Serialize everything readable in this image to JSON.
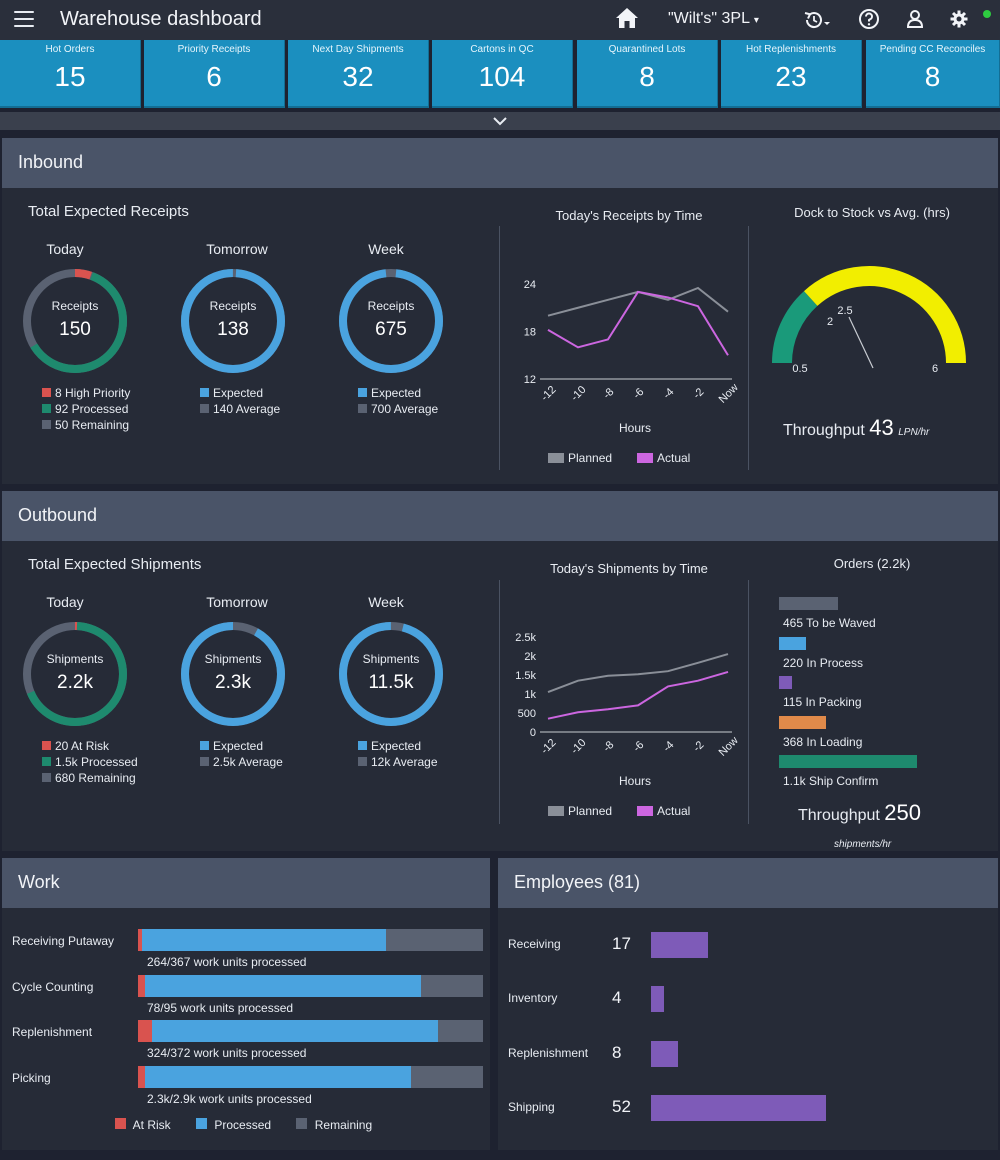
{
  "header": {
    "title": "Warehouse dashboard",
    "tenant": "\"Wilt's\" 3PL",
    "icons": [
      "menu-icon",
      "home-icon",
      "history-icon",
      "help-icon",
      "user-icon",
      "gear-icon"
    ],
    "status_color": "#2ecc40"
  },
  "kpis": [
    {
      "label": "Hot Orders",
      "value": "15"
    },
    {
      "label": "Priority Receipts",
      "value": "6"
    },
    {
      "label": "Next Day Shipments",
      "value": "32"
    },
    {
      "label": "Cartons in QC",
      "value": "104"
    },
    {
      "label": "Quarantined Lots",
      "value": "8"
    },
    {
      "label": "Hot Replenishments",
      "value": "23"
    },
    {
      "label": "Pending CC Reconciles",
      "value": "8"
    }
  ],
  "colors": {
    "kpi": "#1b8fbf",
    "red": "#d9534f",
    "green": "#1e8a6e",
    "blue": "#4aa3df",
    "grey": "#5a6272",
    "planned": "#8a8f98",
    "actual": "#cc66e0",
    "gauge_green": "#1a9a7a",
    "gauge_yellow": "#f2ee00",
    "orange": "#e08a4a",
    "purple": "#7e5bb8"
  },
  "inbound": {
    "title": "Inbound",
    "section_title": "Total Expected Receipts",
    "donuts": [
      {
        "period": "Today",
        "label": "Receipts",
        "value": "150",
        "legend": [
          "8 High Priority",
          "92 Processed",
          "50 Remaining"
        ]
      },
      {
        "period": "Tomorrow",
        "label": "Receipts",
        "value": "138",
        "legend": [
          "Expected",
          "140 Average"
        ]
      },
      {
        "period": "Week",
        "label": "Receipts",
        "value": "675",
        "legend": [
          "Expected",
          "700 Average"
        ]
      }
    ],
    "gauge": {
      "title": "Dock to Stock vs Avg. (hrs)",
      "min_label": "0.5",
      "mid_label": "2",
      "avg_label": "2.5",
      "max_label": "6",
      "throughput_label": "Throughput",
      "throughput_value": "43",
      "throughput_unit": "LPN/hr"
    }
  },
  "outbound": {
    "title": "Outbound",
    "section_title": "Total Expected Shipments",
    "donuts": [
      {
        "period": "Today",
        "label": "Shipments",
        "value": "2.2k",
        "legend": [
          "20 At Risk",
          "1.5k Processed",
          "680 Remaining"
        ]
      },
      {
        "period": "Tomorrow",
        "label": "Shipments",
        "value": "2.3k",
        "legend": [
          "Expected",
          "2.5k Average"
        ]
      },
      {
        "period": "Week",
        "label": "Shipments",
        "value": "11.5k",
        "legend": [
          "Expected",
          "12k Average"
        ]
      }
    ],
    "orders": {
      "title": "Orders (2.2k)",
      "items": [
        {
          "label": "465 To be Waved",
          "value": 465,
          "color": "#5a6272"
        },
        {
          "label": "220 In Process",
          "value": 220,
          "color": "#4aa3df"
        },
        {
          "label": "115 In Packing",
          "value": 115,
          "color": "#7e5bb8"
        },
        {
          "label": "368 In Loading",
          "value": 368,
          "color": "#e08a4a"
        },
        {
          "label": "1.1k Ship Confirm",
          "value": 1100,
          "color": "#1e8a6e"
        }
      ],
      "throughput_label": "Throughput",
      "throughput_value": "250",
      "throughput_unit": "shipments/hr"
    }
  },
  "chart_data": [
    {
      "type": "line",
      "title": "Today's Receipts by Time",
      "xlabel": "Hours",
      "ylabel": "",
      "x": [
        "-12",
        "-10",
        "-8",
        "-6",
        "-4",
        "-2",
        "Now"
      ],
      "yticks": [
        "12",
        "18",
        "24"
      ],
      "ylim": [
        12,
        24
      ],
      "series": [
        {
          "name": "Planned",
          "values": [
            20,
            21,
            22,
            23,
            22,
            23.5,
            20.5
          ]
        },
        {
          "name": "Actual",
          "values": [
            18.2,
            16,
            17,
            23,
            22.3,
            21.2,
            15
          ]
        }
      ],
      "legend_position": "bottom"
    },
    {
      "type": "line",
      "title": "Today's Shipments by Time",
      "xlabel": "Hours",
      "ylabel": "",
      "x": [
        "-12",
        "-10",
        "-8",
        "-6",
        "-4",
        "-2",
        "Now"
      ],
      "yticks": [
        "0",
        "500",
        "1k",
        "1.5k",
        "2k",
        "2.5k"
      ],
      "ylim": [
        0,
        2500
      ],
      "series": [
        {
          "name": "Planned",
          "values": [
            1050,
            1350,
            1480,
            1520,
            1600,
            1820,
            2050
          ]
        },
        {
          "name": "Actual",
          "values": [
            350,
            520,
            600,
            700,
            1200,
            1350,
            1580
          ]
        }
      ],
      "legend_position": "bottom"
    }
  ],
  "work": {
    "title": "Work",
    "rows": [
      {
        "label": "Receiving Putaway",
        "caption": "264/367 work units processed",
        "at_risk": 0.012,
        "processed": 0.72
      },
      {
        "label": "Cycle Counting",
        "caption": "78/95 work units processed",
        "at_risk": 0.02,
        "processed": 0.82
      },
      {
        "label": "Replenishment",
        "caption": "324/372 work units processed",
        "at_risk": 0.04,
        "processed": 0.87
      },
      {
        "label": "Picking",
        "caption": "2.3k/2.9k work units processed",
        "at_risk": 0.02,
        "processed": 0.79
      }
    ],
    "legend": [
      "At Risk",
      "Processed",
      "Remaining"
    ]
  },
  "employees": {
    "title": "Employees (81)",
    "rows": [
      {
        "label": "Receiving",
        "count": "17",
        "value": 17
      },
      {
        "label": "Inventory",
        "count": "4",
        "value": 4
      },
      {
        "label": "Replenishment",
        "count": "8",
        "value": 8
      },
      {
        "label": "Shipping",
        "count": "52",
        "value": 52
      }
    ]
  }
}
